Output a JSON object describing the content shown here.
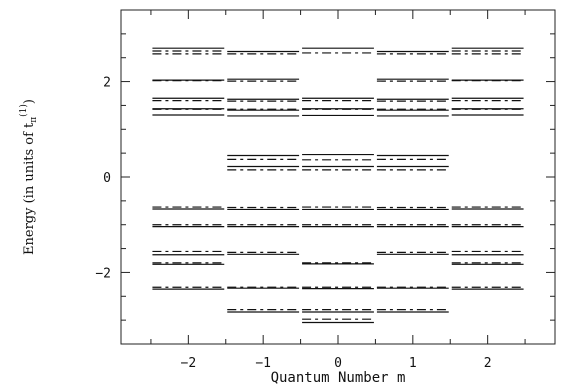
{
  "chart_data": {
    "type": "scatter",
    "xlabel": "Quantum Number m",
    "ylabel_main": "Energy (in units of t",
    "ylabel_sub": "π",
    "ylabel_sup": "(1)",
    "ylabel_tail": ")",
    "xlim": [
      -2.9,
      2.9
    ],
    "ylim": [
      -3.5,
      3.5
    ],
    "x_ticks": [
      {
        "value": -2,
        "label": "−2"
      },
      {
        "value": -1,
        "label": "−1"
      },
      {
        "value": 0,
        "label": "0"
      },
      {
        "value": 1,
        "label": "1"
      },
      {
        "value": 2,
        "label": "2"
      }
    ],
    "y_ticks": [
      {
        "value": -2,
        "label": "−2"
      },
      {
        "value": 0,
        "label": "0"
      },
      {
        "value": 2,
        "label": "2"
      }
    ],
    "level_half_width": 0.5,
    "series": [
      {
        "style": "solid",
        "levels": [
          {
            "m": -2,
            "energies": [
              2.7,
              2.03,
              1.65,
              1.43,
              1.3,
              -0.67,
              -1.04,
              -1.63,
              -1.83,
              -2.35
            ]
          },
          {
            "m": -1,
            "energies": [
              2.63,
              2.05,
              1.63,
              1.4,
              1.28,
              0.45,
              0.22,
              -0.68,
              -1.04,
              -1.62,
              -2.33,
              -2.83
            ]
          },
          {
            "m": 0,
            "energies": [
              2.7,
              1.65,
              1.43,
              1.29,
              0.47,
              0.22,
              -0.68,
              -1.04,
              -1.82,
              -2.34,
              -2.83,
              -3.05
            ]
          },
          {
            "m": 1,
            "energies": [
              2.63,
              2.05,
              1.63,
              1.4,
              1.28,
              0.45,
              0.22,
              -0.68,
              -1.04,
              -1.62,
              -2.33,
              -2.83
            ]
          },
          {
            "m": 2,
            "energies": [
              2.7,
              2.03,
              1.65,
              1.43,
              1.3,
              -0.67,
              -1.04,
              -1.63,
              -1.83,
              -2.35
            ]
          }
        ]
      },
      {
        "style": "dashed",
        "levels": [
          {
            "m": -2,
            "energies": [
              2.64,
              2.58,
              2.02,
              1.6,
              1.42,
              -0.63,
              -1.0,
              -1.56,
              -1.8,
              -2.31
            ]
          },
          {
            "m": -1,
            "energies": [
              2.58,
              2.01,
              1.59,
              1.42,
              0.37,
              0.15,
              -0.64,
              -1.0,
              -1.58,
              -2.31,
              -2.78
            ]
          },
          {
            "m": 0,
            "energies": [
              2.6,
              1.6,
              1.42,
              0.36,
              0.15,
              -0.63,
              -1.0,
              -1.8,
              -2.31,
              -2.78,
              -2.98
            ]
          },
          {
            "m": 1,
            "energies": [
              2.58,
              2.01,
              1.59,
              1.42,
              0.37,
              0.15,
              -0.64,
              -1.0,
              -1.58,
              -2.31,
              -2.78
            ]
          },
          {
            "m": 2,
            "energies": [
              2.64,
              2.58,
              2.02,
              1.6,
              1.42,
              -0.63,
              -1.0,
              -1.56,
              -1.8,
              -2.31
            ]
          }
        ]
      }
    ]
  }
}
